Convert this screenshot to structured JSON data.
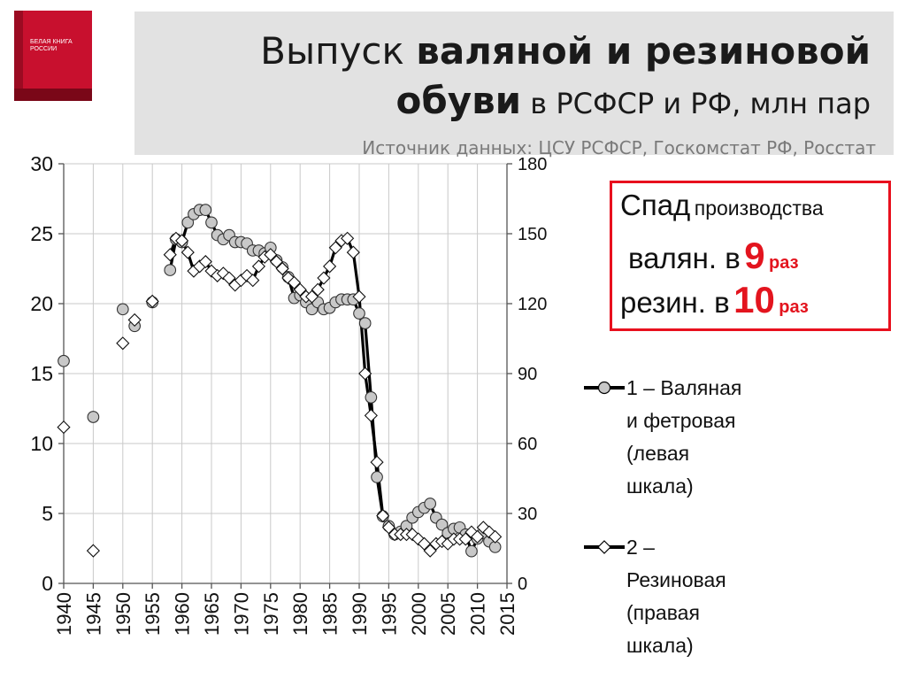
{
  "header": {
    "title_plain": "Выпуск ",
    "title_bold": "валяной и резиновой",
    "title_bold2": "обуви",
    "title_rest": " в РСФСР и РФ, млн пар",
    "source": "Источник данных: ЦСУ РСФСР, Госкомстат РФ, Росстат"
  },
  "book_cover": {
    "title": "БЕЛАЯ КНИГА РОССИИ",
    "color": "#c8102e"
  },
  "callout": {
    "line1_big": "Спад",
    "line1_small": "производства",
    "line2_text": "валян. в",
    "line2_num": "9",
    "line2_unit": "раз",
    "line3_text": "резин. в",
    "line3_num": "10",
    "line3_unit": "раз",
    "border_color": "#e8101e"
  },
  "legend": {
    "item1": "1 – Валяная\nи фетровая\n(левая\nшкала)",
    "item2": "2 –\nРезиновая\n(правая\nшкала)"
  },
  "chart_data": {
    "type": "line",
    "x_ticks": [
      1940,
      1945,
      1950,
      1955,
      1960,
      1965,
      1970,
      1975,
      1980,
      1985,
      1990,
      1995,
      2000,
      2005,
      2010,
      2015
    ],
    "xlim": [
      1940,
      2015
    ],
    "y_left": {
      "ticks": [
        0,
        5,
        10,
        15,
        20,
        25,
        30
      ],
      "lim": [
        0,
        30
      ]
    },
    "y_right": {
      "ticks": [
        0,
        30,
        60,
        90,
        120,
        150,
        180
      ],
      "lim": [
        0,
        180
      ]
    },
    "grid": true,
    "series": [
      {
        "name": "1 – Валяная и фетровая (левая шкала)",
        "axis": "left",
        "marker": "circle",
        "marker_fill": "#c8c8c8",
        "points": [
          [
            1940,
            15.9
          ],
          [
            1945,
            11.9
          ],
          [
            1950,
            19.6
          ],
          [
            1952,
            18.4
          ],
          [
            1955,
            20.1
          ],
          [
            1958,
            22.4
          ],
          [
            1959,
            24.6
          ],
          [
            1960,
            24.4
          ],
          [
            1961,
            25.8
          ],
          [
            1962,
            26.4
          ],
          [
            1963,
            26.7
          ],
          [
            1964,
            26.7
          ],
          [
            1965,
            25.8
          ],
          [
            1966,
            24.9
          ],
          [
            1967,
            24.6
          ],
          [
            1968,
            24.9
          ],
          [
            1969,
            24.4
          ],
          [
            1970,
            24.4
          ],
          [
            1971,
            24.3
          ],
          [
            1972,
            23.8
          ],
          [
            1973,
            23.8
          ],
          [
            1974,
            23.6
          ],
          [
            1975,
            24.0
          ],
          [
            1976,
            23.1
          ],
          [
            1977,
            22.6
          ],
          [
            1978,
            21.9
          ],
          [
            1979,
            20.4
          ],
          [
            1980,
            20.6
          ],
          [
            1981,
            20.1
          ],
          [
            1982,
            19.6
          ],
          [
            1983,
            20.1
          ],
          [
            1984,
            19.6
          ],
          [
            1985,
            19.7
          ],
          [
            1986,
            20.1
          ],
          [
            1987,
            20.3
          ],
          [
            1988,
            20.3
          ],
          [
            1989,
            20.3
          ],
          [
            1990,
            19.3
          ],
          [
            1991,
            18.6
          ],
          [
            1992,
            13.3
          ],
          [
            1993,
            7.6
          ],
          [
            1994,
            4.8
          ],
          [
            1995,
            4.1
          ],
          [
            1996,
            3.5
          ],
          [
            1997,
            3.7
          ],
          [
            1998,
            4.1
          ],
          [
            1999,
            4.7
          ],
          [
            2000,
            5.1
          ],
          [
            2001,
            5.4
          ],
          [
            2002,
            5.7
          ],
          [
            2003,
            4.7
          ],
          [
            2004,
            4.2
          ],
          [
            2005,
            3.6
          ],
          [
            2006,
            3.9
          ],
          [
            2007,
            4.0
          ],
          [
            2008,
            3.5
          ],
          [
            2009,
            2.3
          ],
          [
            2010,
            3.2
          ],
          [
            2011,
            3.6
          ],
          [
            2012,
            3.0
          ],
          [
            2013,
            2.6
          ]
        ]
      },
      {
        "name": "2 – Резиновая (правая шкала)",
        "axis": "right",
        "marker": "diamond",
        "marker_fill": "#ffffff",
        "points": [
          [
            1940,
            67
          ],
          [
            1945,
            14
          ],
          [
            1950,
            103
          ],
          [
            1952,
            113
          ],
          [
            1955,
            121
          ],
          [
            1958,
            141
          ],
          [
            1959,
            148
          ],
          [
            1960,
            147
          ],
          [
            1961,
            142
          ],
          [
            1962,
            134
          ],
          [
            1963,
            136
          ],
          [
            1964,
            138
          ],
          [
            1965,
            134
          ],
          [
            1966,
            132
          ],
          [
            1967,
            133
          ],
          [
            1968,
            131
          ],
          [
            1969,
            128
          ],
          [
            1970,
            130
          ],
          [
            1971,
            132
          ],
          [
            1972,
            130
          ],
          [
            1973,
            136
          ],
          [
            1974,
            140
          ],
          [
            1975,
            141
          ],
          [
            1976,
            138
          ],
          [
            1977,
            135
          ],
          [
            1978,
            131
          ],
          [
            1979,
            129
          ],
          [
            1980,
            126
          ],
          [
            1981,
            123
          ],
          [
            1982,
            123
          ],
          [
            1983,
            126
          ],
          [
            1984,
            131
          ],
          [
            1985,
            136
          ],
          [
            1986,
            144
          ],
          [
            1987,
            147
          ],
          [
            1988,
            148
          ],
          [
            1989,
            142
          ],
          [
            1990,
            123
          ],
          [
            1991,
            90
          ],
          [
            1992,
            72
          ],
          [
            1993,
            52
          ],
          [
            1994,
            29
          ],
          [
            1995,
            24
          ],
          [
            1996,
            21
          ],
          [
            1997,
            21
          ],
          [
            1998,
            21
          ],
          [
            1999,
            21
          ],
          [
            2000,
            19
          ],
          [
            2001,
            17
          ],
          [
            2002,
            14
          ],
          [
            2003,
            17
          ],
          [
            2004,
            18
          ],
          [
            2005,
            17
          ],
          [
            2006,
            19
          ],
          [
            2007,
            19
          ],
          [
            2008,
            19
          ],
          [
            2009,
            22
          ],
          [
            2010,
            20
          ],
          [
            2011,
            24
          ],
          [
            2012,
            22
          ],
          [
            2013,
            20
          ]
        ]
      }
    ]
  }
}
